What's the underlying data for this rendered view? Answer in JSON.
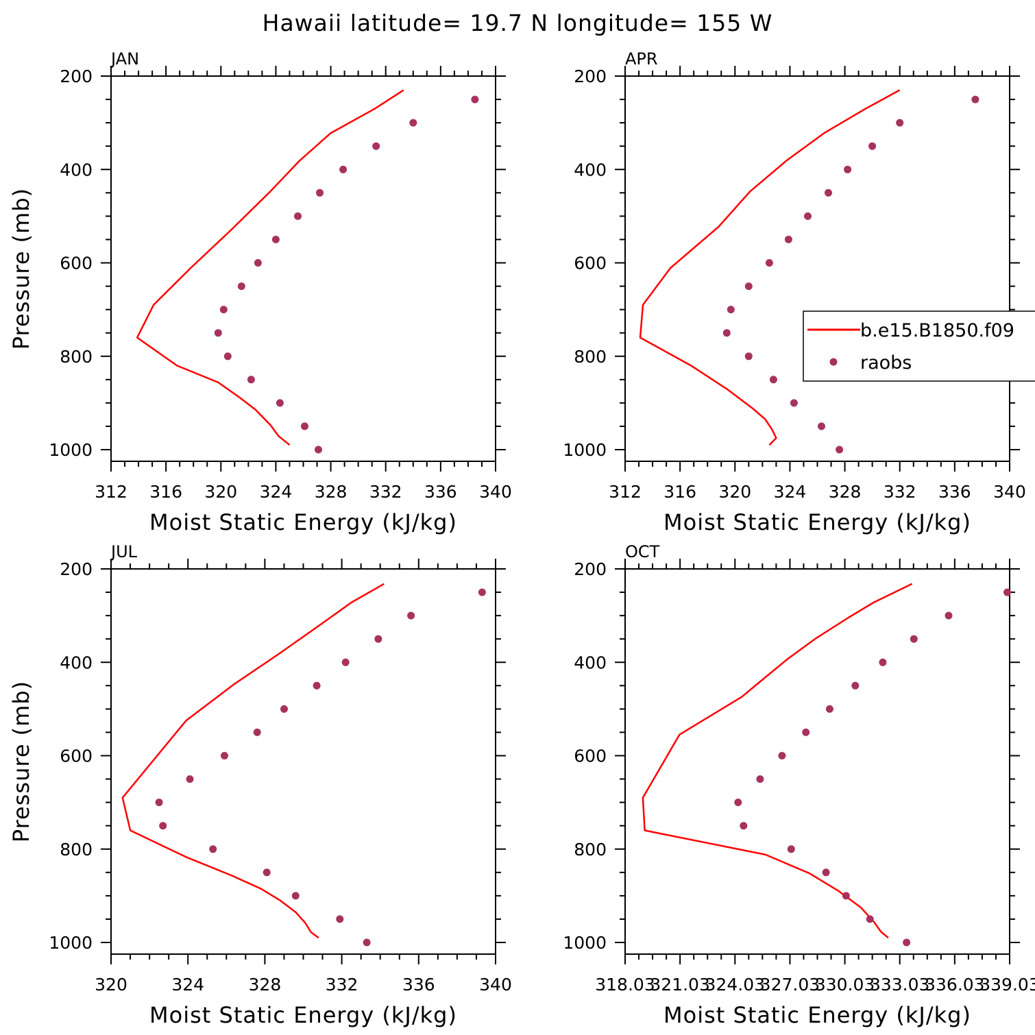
{
  "title": "Hawaii  latitude= 19.7 N longitude= 155 W",
  "legend": {
    "model_label": "b.e15.B1850.f09",
    "obs_label": "raobs",
    "placement": "right side of APR panel"
  },
  "colors": {
    "model_line": "#ff0000",
    "obs_marker": "#a8325e",
    "axes": "#000000"
  },
  "chart_data": [
    {
      "type": "line",
      "panel": "JAN",
      "xlabel": "Moist Static Energy (kJ/kg)",
      "ylabel": "Pressure (mb)",
      "xlim": [
        312,
        340
      ],
      "ylim": [
        200,
        1000
      ],
      "y_inverted": true,
      "x_ticks": [
        "312",
        "316",
        "320",
        "324",
        "328",
        "332",
        "336",
        "340"
      ],
      "y_ticks": [
        "200",
        "400",
        "600",
        "800",
        "1000"
      ],
      "series": [
        {
          "name": "b.e15.B1850.f09",
          "style": "line",
          "x": [
            333.3,
            331.2,
            328.0,
            325.7,
            323.6,
            320.8,
            317.8,
            315.1,
            313.9,
            316.8,
            319.8,
            321.3,
            322.5,
            323.6,
            324.2,
            325.0
          ],
          "y": [
            230,
            270,
            322,
            382,
            447,
            528,
            611,
            690,
            760,
            820,
            856,
            887,
            914,
            947,
            971,
            990
          ]
        },
        {
          "name": "raobs",
          "style": "markers",
          "x": [
            338.5,
            334.0,
            331.3,
            328.9,
            327.2,
            325.6,
            324.0,
            322.7,
            321.5,
            320.2,
            319.8,
            320.5,
            322.2,
            324.3,
            326.1,
            327.1
          ],
          "y": [
            250,
            300,
            350,
            400,
            450,
            500,
            550,
            600,
            650,
            700,
            750,
            800,
            850,
            900,
            950,
            1000
          ]
        }
      ]
    },
    {
      "type": "line",
      "panel": "APR",
      "xlabel": "Moist Static Energy (kJ/kg)",
      "ylabel": "",
      "xlim": [
        312,
        340
      ],
      "ylim": [
        200,
        1000
      ],
      "y_inverted": true,
      "x_ticks": [
        "312",
        "316",
        "320",
        "324",
        "328",
        "332",
        "336",
        "340"
      ],
      "y_ticks": [
        "200",
        "400",
        "600",
        "800",
        "1000"
      ],
      "series": [
        {
          "name": "b.e15.B1850.f09",
          "style": "line",
          "x": [
            332.0,
            329.5,
            326.5,
            323.8,
            321.1,
            318.8,
            315.3,
            313.3,
            313.1,
            316.8,
            319.4,
            321.3,
            322.2,
            322.7,
            323.0,
            322.5
          ],
          "y": [
            230,
            270,
            322,
            380,
            447,
            523,
            611,
            690,
            760,
            820,
            870,
            912,
            935,
            957,
            975,
            990
          ]
        },
        {
          "name": "raobs",
          "style": "markers",
          "x": [
            337.5,
            332.0,
            330.0,
            328.2,
            326.8,
            325.3,
            323.9,
            322.5,
            321.0,
            319.7,
            319.4,
            321.0,
            322.8,
            324.3,
            326.3,
            327.6
          ],
          "y": [
            250,
            300,
            350,
            400,
            450,
            500,
            550,
            600,
            650,
            700,
            750,
            800,
            850,
            900,
            950,
            1000
          ]
        }
      ]
    },
    {
      "type": "line",
      "panel": "JUL",
      "xlabel": "Moist Static Energy (kJ/kg)",
      "ylabel": "Pressure (mb)",
      "xlim": [
        320,
        340
      ],
      "ylim": [
        200,
        1000
      ],
      "y_inverted": true,
      "x_ticks": [
        "320",
        "324",
        "328",
        "332",
        "336",
        "340"
      ],
      "y_ticks": [
        "200",
        "400",
        "600",
        "800",
        "1000"
      ],
      "series": [
        {
          "name": "b.e15.B1850.f09",
          "style": "line",
          "x": [
            334.2,
            332.5,
            330.8,
            328.8,
            326.4,
            323.9,
            320.6,
            321.0,
            323.9,
            326.3,
            327.8,
            328.8,
            329.6,
            330.1,
            330.4,
            330.8
          ],
          "y": [
            232,
            272,
            322,
            380,
            447,
            525,
            690,
            760,
            817,
            857,
            885,
            910,
            935,
            958,
            978,
            990
          ]
        },
        {
          "name": "raobs",
          "style": "markers",
          "x": [
            339.3,
            335.6,
            333.9,
            332.2,
            330.7,
            329.0,
            327.6,
            325.9,
            324.1,
            322.5,
            322.7,
            325.3,
            328.1,
            329.6,
            331.9,
            333.3
          ],
          "y": [
            250,
            300,
            350,
            400,
            450,
            500,
            550,
            600,
            650,
            700,
            750,
            800,
            850,
            900,
            950,
            1000
          ]
        }
      ]
    },
    {
      "type": "line",
      "panel": "OCT",
      "xlabel": "Moist Static Energy (kJ/kg)",
      "ylabel": "",
      "xlim": [
        318.03,
        339.03
      ],
      "ylim": [
        200,
        1000
      ],
      "y_inverted": true,
      "x_ticks": [
        "318.03",
        "321.03",
        "324.03",
        "327.03",
        "330.03",
        "333.03",
        "336.03",
        "339.03"
      ],
      "y_ticks": [
        "200",
        "400",
        "600",
        "800",
        "1000"
      ],
      "series": [
        {
          "name": "b.e15.B1850.f09",
          "style": "line",
          "x": [
            333.7,
            331.6,
            330.2,
            328.4,
            326.9,
            325.6,
            324.4,
            321.0,
            319.0,
            319.1,
            325.7,
            328.1,
            329.7,
            330.9,
            331.6,
            332.0,
            332.4
          ],
          "y": [
            232,
            272,
            305,
            350,
            393,
            435,
            474,
            555,
            690,
            760,
            812,
            852,
            890,
            925,
            955,
            977,
            990
          ]
        },
        {
          "name": "raobs",
          "style": "markers",
          "x": [
            338.9,
            335.7,
            333.8,
            332.1,
            330.6,
            329.2,
            327.9,
            326.6,
            325.4,
            324.2,
            324.5,
            327.1,
            329.0,
            330.1,
            331.4,
            333.4
          ],
          "y": [
            250,
            300,
            350,
            400,
            450,
            500,
            550,
            600,
            650,
            700,
            750,
            800,
            850,
            900,
            950,
            1000
          ]
        }
      ]
    }
  ]
}
